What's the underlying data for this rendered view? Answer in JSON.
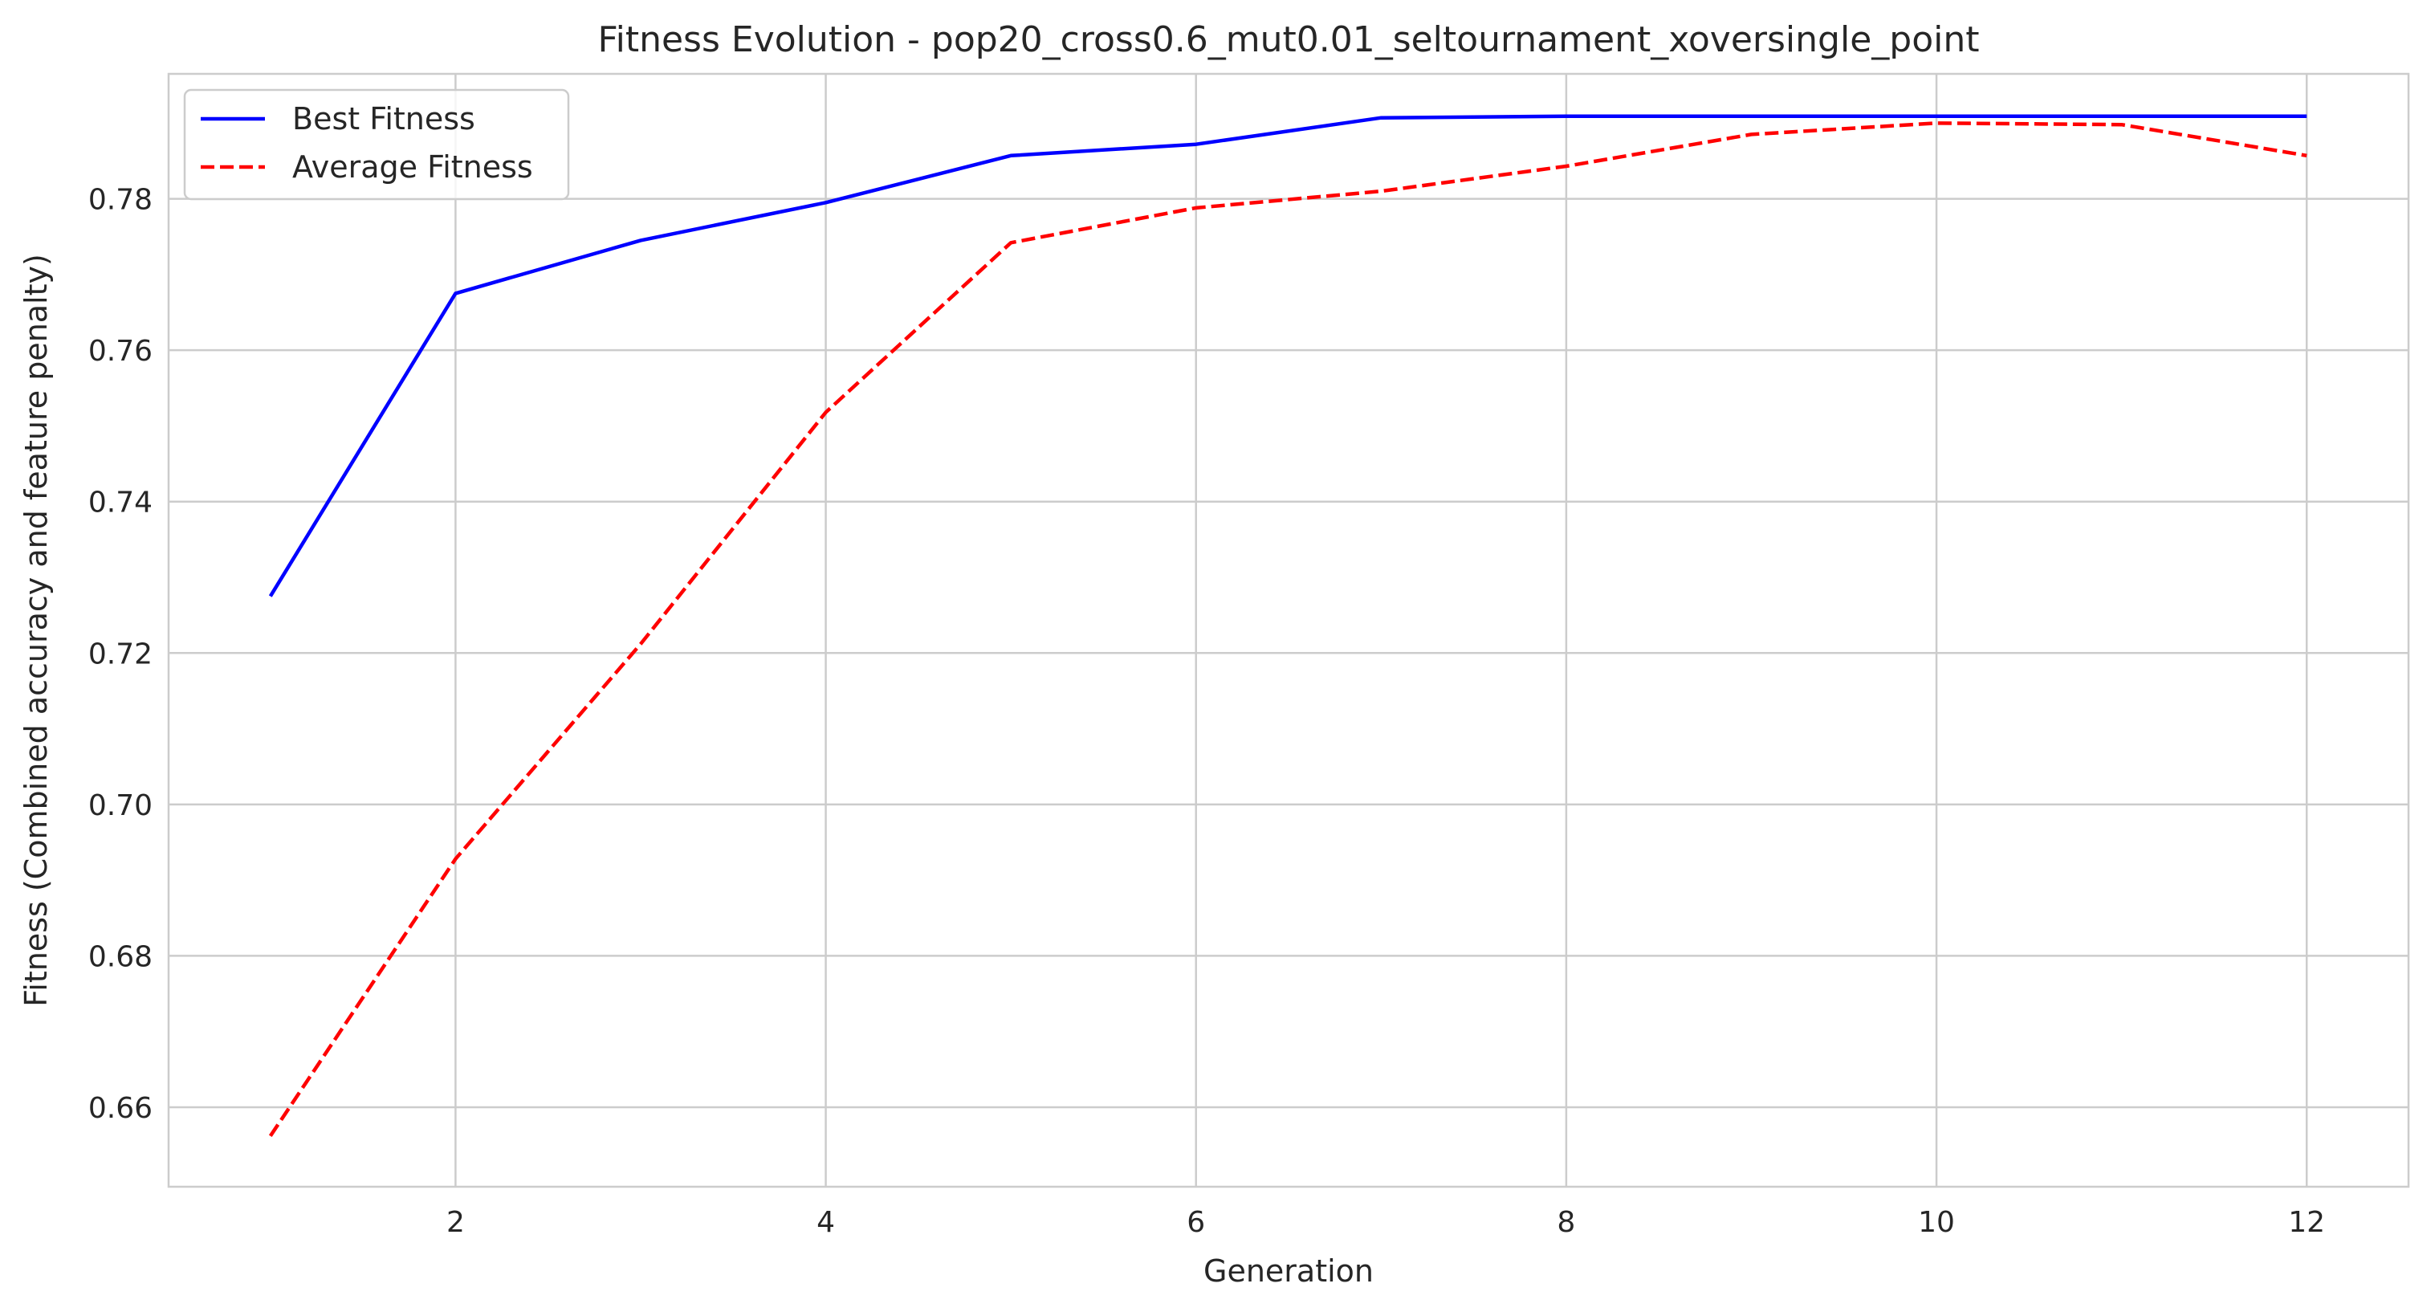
{
  "chart_data": {
    "type": "line",
    "title": "Fitness Evolution - pop20_cross0.6_mut0.01_seltournament_xoversingle_point",
    "xlabel": "Generation",
    "ylabel": "Fitness (Combined accuracy and feature penalty)",
    "x": [
      1,
      2,
      3,
      4,
      5,
      6,
      7,
      8,
      9,
      10,
      11,
      12
    ],
    "xlim": [
      0.45,
      12.55
    ],
    "ylim": [
      0.6495,
      0.7965
    ],
    "xticks": [
      2,
      4,
      6,
      8,
      10,
      12
    ],
    "xtick_labels": [
      "2",
      "4",
      "6",
      "8",
      "10",
      "12"
    ],
    "yticks": [
      0.66,
      0.68,
      0.7,
      0.72,
      0.74,
      0.76,
      0.78
    ],
    "ytick_labels": [
      "0.66",
      "0.68",
      "0.70",
      "0.72",
      "0.74",
      "0.76",
      "0.78"
    ],
    "grid": true,
    "legend_position": "top-left",
    "series": [
      {
        "name": "Best Fitness",
        "color": "#0000ff",
        "style": "solid",
        "values": [
          0.7275,
          0.7675,
          0.7745,
          0.7795,
          0.7857,
          0.7872,
          0.7907,
          0.7909,
          0.7909,
          0.7909,
          0.7909,
          0.7909
        ]
      },
      {
        "name": "Average Fitness",
        "color": "#ff0000",
        "style": "dashed",
        "values": [
          0.6562,
          0.6928,
          0.7212,
          0.7518,
          0.7742,
          0.7788,
          0.781,
          0.7843,
          0.7885,
          0.79,
          0.7898,
          0.7857
        ]
      }
    ]
  }
}
